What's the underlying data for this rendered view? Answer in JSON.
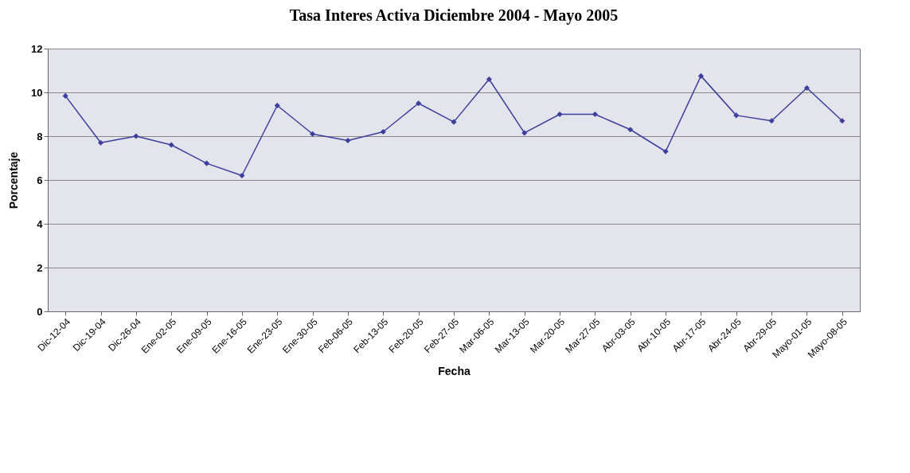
{
  "chart_data": {
    "type": "line",
    "title": "Tasa Interes Activa Diciembre 2004 - Mayo 2005",
    "xlabel": "Fecha",
    "ylabel": "Porcentaje",
    "categories": [
      "Dic-12-04",
      "Dic-19-04",
      "Dic-26-04",
      "Ene-02-05",
      "Ene-09-05",
      "Ene-16-05",
      "Ene-23-05",
      "Ene-30-05",
      "Feb-06-05",
      "Feb-13-05",
      "Feb-20-05",
      "Feb-27-05",
      "Mar-06-05",
      "Mar-13-05",
      "Mar-20-05",
      "Mar-27-05",
      "Abr-03-05",
      "Abr-10-05",
      "Abr-17-05",
      "Abr-24-05",
      "Abr-29-05",
      "Mayo-01-05",
      "Mayo-08-05"
    ],
    "series": [
      {
        "color": "#3c3f9c",
        "values": [
          9.84,
          7.7,
          8.0,
          7.6,
          6.76,
          6.2,
          9.4,
          8.1,
          7.8,
          8.2,
          9.5,
          8.65,
          10.6,
          8.15,
          9.0,
          9.0,
          8.3,
          7.3,
          10.75,
          8.95,
          8.7,
          10.2,
          8.7
        ]
      }
    ],
    "ylim": [
      0,
      12
    ],
    "yticks": [
      0,
      2,
      4,
      6,
      8,
      10,
      12
    ],
    "grid": "y",
    "marker": "diamond",
    "line_style": "solid",
    "legend": false
  }
}
